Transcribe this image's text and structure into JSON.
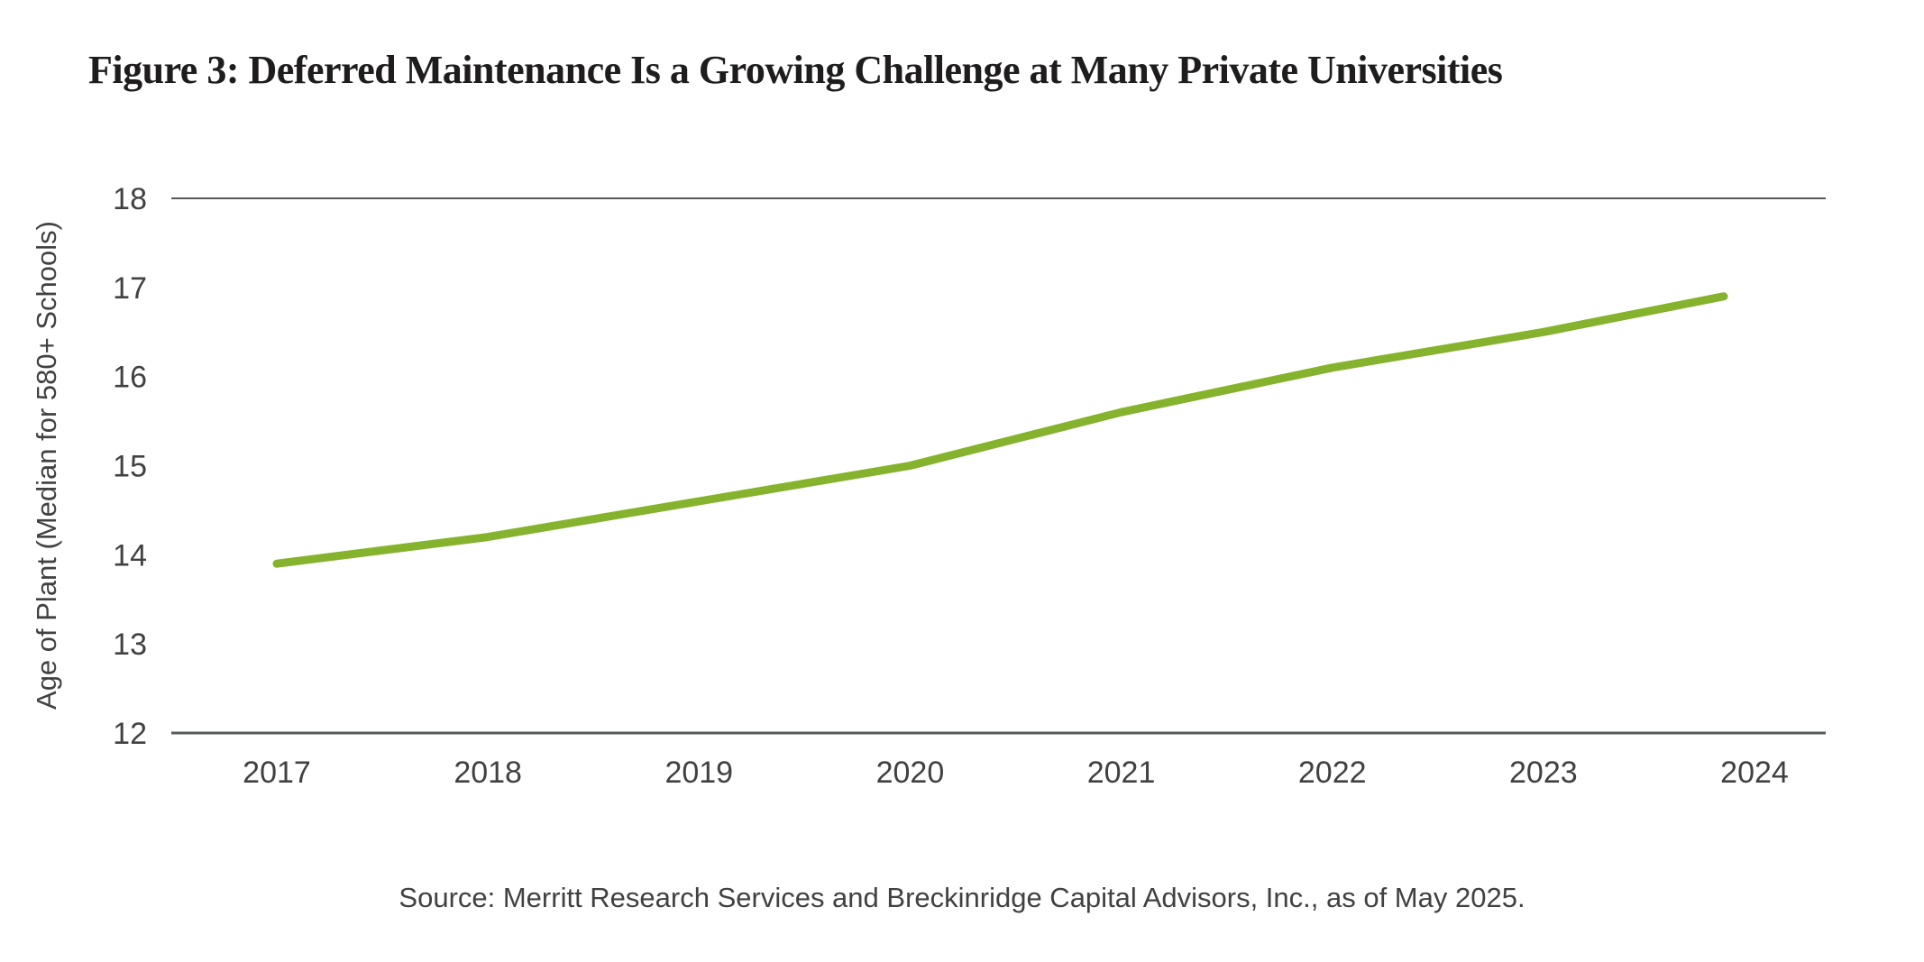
{
  "title": "Figure 3: Deferred Maintenance Is a Growing Challenge at Many Private Universities",
  "footer": {
    "source": "Source: Merritt Research Services and Breckinridge Capital Advisors, Inc., as of May 2025."
  },
  "chart_data": {
    "type": "line",
    "title": "Figure 3: Deferred Maintenance Is a Growing Challenge at Many Private Universities",
    "xlabel": "",
    "ylabel": "Age of Plant (Median for 580+ Schools)",
    "categories": [
      "2017",
      "2018",
      "2019",
      "2020",
      "2021",
      "2022",
      "2023",
      "2024"
    ],
    "values": [
      13.9,
      14.2,
      14.6,
      15.0,
      15.6,
      16.1,
      16.5,
      16.9
    ],
    "ylim": [
      12,
      18
    ],
    "yticks": [
      12,
      13,
      14,
      15,
      16,
      17,
      18
    ],
    "grid": "horizontal bounds only (lines at y=18 top and y=12 bottom)",
    "legend": "none",
    "line_color": "#85b32d",
    "axis_line_color": "#58595b",
    "tick_text_color": "#414042",
    "title_color": "#1e1c1c"
  }
}
